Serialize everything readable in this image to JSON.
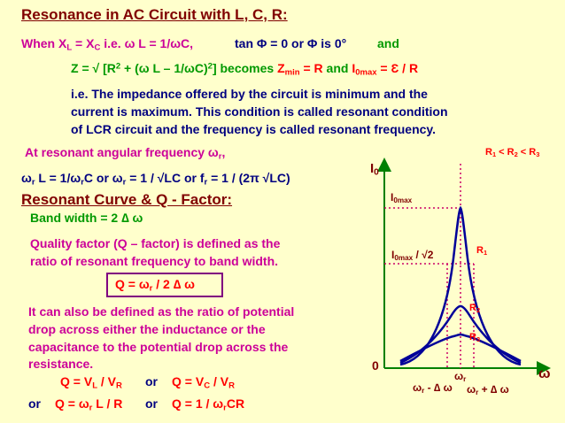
{
  "title": "Resonance in AC Circuit with L, C, R:",
  "line1": {
    "when": "When X",
    "sub_l": "L",
    "eq": " = X",
    "sub_c": "C",
    "ie": "   i.e. ω L = 1/ωC,",
    "tan": "tan Φ = 0  or Φ is 0°",
    "and": "and"
  },
  "line2": {
    "z": "Z = √ [R",
    "sup2a": "2",
    "mid": " + (ω L – 1/ωC)",
    "sup2b": "2",
    "end": "]   becomes",
    "zmin": "Z",
    "zmin_sub": "min",
    "zmin_eq": " = R",
    "and": " and ",
    "i0": "I",
    "i0_sub": "0max",
    "i0_eq": " = Ɛ / R"
  },
  "paragraph": [
    "i.e. The impedance offered by the circuit is minimum and the",
    "current is maximum.  This condition is called resonant condition",
    "of LCR circuit and the frequency is called resonant frequency."
  ],
  "resonant_angular": "At resonant angular frequency ω",
  "resonant_angular_sub": "r",
  "resonant_angular_end": ",",
  "formula_line": {
    "a": "ω",
    "a_sub": "r",
    "b": " L = 1/ω",
    "b_sub": "r",
    "c": "C  or  ω",
    "c_sub": "r",
    "d": "  = 1 / √LC  or  f",
    "d_sub": "r",
    "e": "  = 1 / (2π √LC)"
  },
  "section_title": "Resonant Curve & Q - Factor:",
  "bandwidth": "Band width = 2 ∆ ω",
  "quality": [
    "Quality factor (Q – factor) is defined as the",
    "ratio of resonant frequency to band width."
  ],
  "q_box": {
    "a": "Q = ω",
    "a_sub": "r",
    "b": " / 2 ∆ ω"
  },
  "also": [
    "It can also be defined as the ratio of potential",
    "drop across either the inductance or the",
    "capacitance to the potential drop across the",
    "resistance."
  ],
  "q_formulas1": {
    "a": "Q = V",
    "a_sub": "L",
    "b": " / V",
    "b_sub": "R",
    "or": "or",
    "c": "Q = V",
    "c_sub": "C",
    "d": " / V",
    "d_sub": "R"
  },
  "q_formulas2": {
    "or1": "or",
    "a": "Q = ω",
    "a_sub": "r",
    "b": " L / R",
    "or2": "or",
    "c": "Q = 1 / ω",
    "c_sub": "r",
    "d": "CR"
  },
  "graph": {
    "legend": "R",
    "legend_s1": "1",
    "legend_m1": " < R",
    "legend_s2": "2",
    "legend_m2": " < R",
    "legend_s3": "3",
    "y_axis": "I",
    "y_axis_sub": "0",
    "i0max": "I",
    "i0max_sub": "0max",
    "half": "I",
    "half_sub": "0max",
    "half_end": " / √2",
    "r1": "R",
    "r1_sub": "1",
    "r2": "R",
    "r2_sub": "2",
    "r3": "R",
    "r3_sub": "3",
    "origin": "0",
    "omega_r": "ω",
    "omega_r_sub": "r",
    "left_bw": "ω",
    "left_bw_sub": "r",
    "left_bw_end": " - ∆ ω",
    "right_bw": "ω",
    "right_bw_sub": "r",
    "right_bw_end": " + ∆ ω",
    "x_axis": "ω",
    "curve_color": "#000099",
    "axis_color": "#008000",
    "dotted_color": "#cc0066"
  }
}
